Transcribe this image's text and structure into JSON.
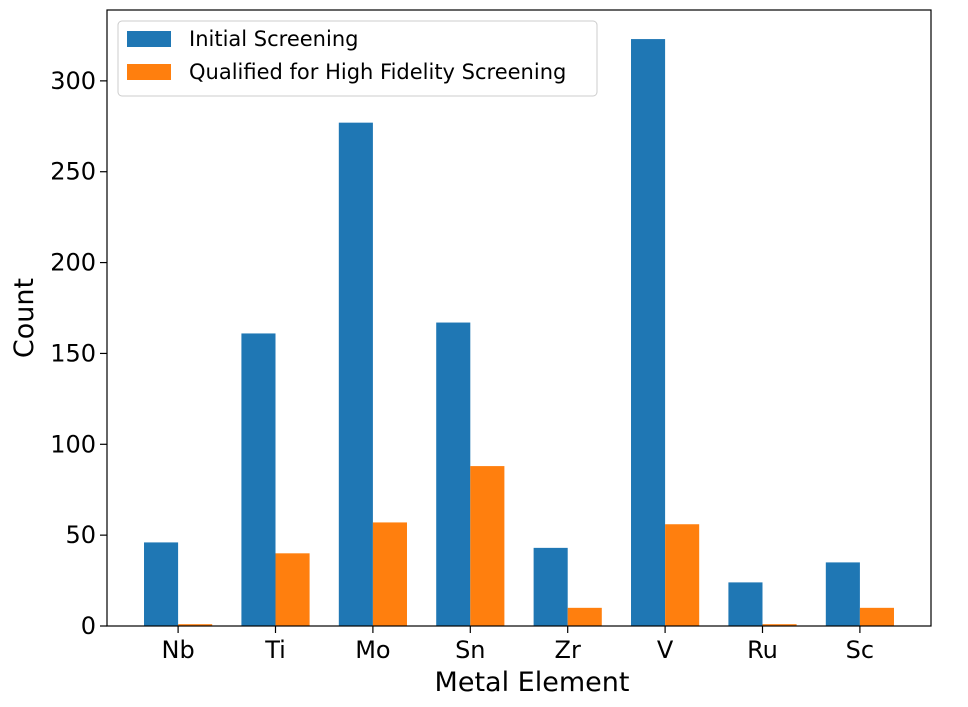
{
  "chart_data": {
    "type": "bar",
    "title": "",
    "xlabel": "Metal Element",
    "ylabel": "Count",
    "categories": [
      "Nb",
      "Ti",
      "Mo",
      "Sn",
      "Zr",
      "V",
      "Ru",
      "Sc"
    ],
    "series": [
      {
        "name": "Initial Screening",
        "color": "#1f77b4",
        "values": [
          46,
          161,
          277,
          167,
          43,
          323,
          24,
          35
        ]
      },
      {
        "name": "Qualified for High Fidelity Screening",
        "color": "#ff7f0e",
        "values": [
          1,
          40,
          57,
          88,
          10,
          56,
          1,
          10
        ]
      }
    ],
    "ylim": [
      0,
      339
    ],
    "yticks": [
      0,
      50,
      100,
      150,
      200,
      250,
      300
    ],
    "grid": false,
    "legend_position": "top-left"
  }
}
